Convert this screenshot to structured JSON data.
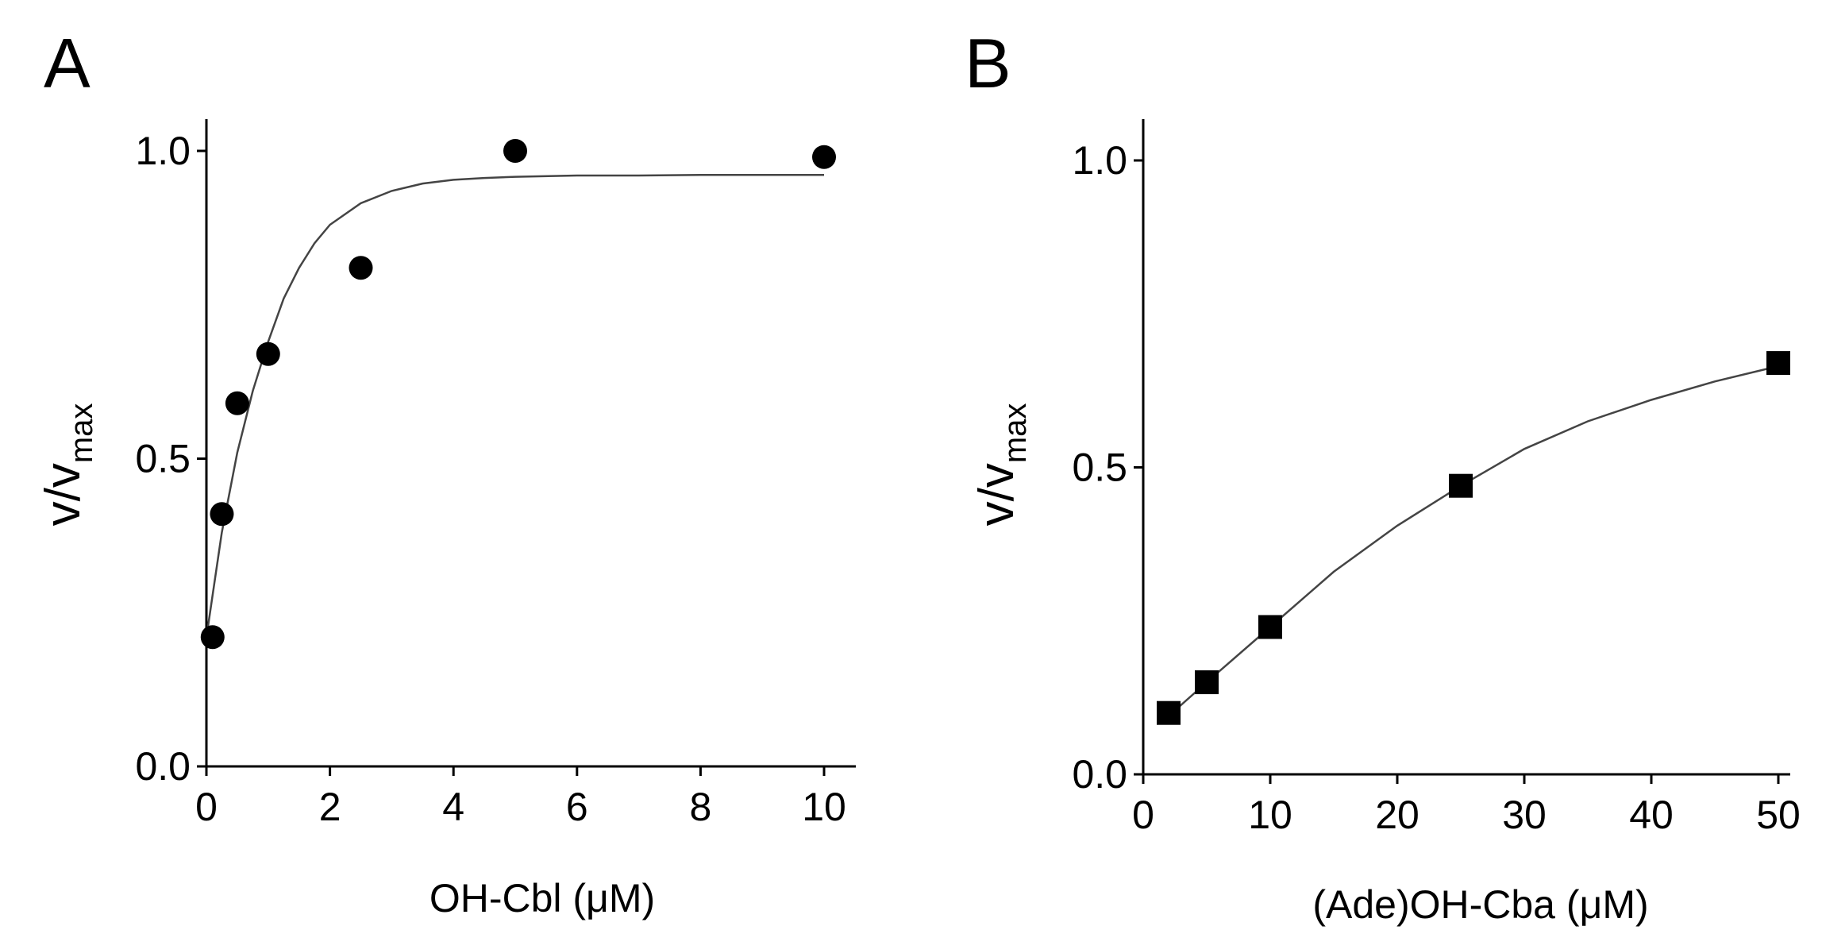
{
  "chart_data": [
    {
      "type": "scatter",
      "panel_label": "A",
      "xlabel": "OH-Cbl (μM)",
      "ylabel": "v/v",
      "ylabel_subscript": "max",
      "xlim": [
        0,
        10.5
      ],
      "ylim": [
        0,
        1.05
      ],
      "xticks": [
        0,
        2,
        4,
        6,
        8,
        10
      ],
      "xtick_labels": [
        "0",
        "2",
        "4",
        "6",
        "8",
        "10"
      ],
      "yticks": [
        0,
        0.5,
        1
      ],
      "ytick_labels": [
        "0.0",
        "0.5",
        "1.0"
      ],
      "marker": "circle",
      "series": [
        {
          "name": "data",
          "x": [
            0.1,
            0.25,
            0.5,
            1.0,
            2.5,
            5.0,
            10.0
          ],
          "y": [
            0.21,
            0.41,
            0.59,
            0.67,
            0.81,
            1.0,
            0.99
          ]
        }
      ],
      "fit": {
        "name": "fit",
        "x": [
          0,
          0.25,
          0.5,
          0.75,
          1.0,
          1.25,
          1.5,
          1.75,
          2.0,
          2.5,
          3.0,
          3.5,
          4.0,
          4.5,
          5.0,
          6.0,
          7.0,
          8.0,
          9.0,
          10.0
        ],
        "y": [
          0.21,
          0.38,
          0.51,
          0.61,
          0.69,
          0.76,
          0.81,
          0.85,
          0.88,
          0.915,
          0.935,
          0.947,
          0.953,
          0.956,
          0.958,
          0.96,
          0.96,
          0.961,
          0.961,
          0.961
        ]
      }
    },
    {
      "type": "scatter",
      "panel_label": "B",
      "xlabel": "(Ade)OH-Cba (μM)",
      "ylabel": "v/v",
      "ylabel_subscript": "max",
      "xlim": [
        0,
        51
      ],
      "ylim": [
        0,
        1.05
      ],
      "xticks": [
        0,
        10,
        20,
        30,
        40,
        50
      ],
      "xtick_labels": [
        "0",
        "10",
        "20",
        "30",
        "40",
        "50"
      ],
      "yticks": [
        0,
        0.5,
        1
      ],
      "ytick_labels": [
        "0.0",
        "0.5",
        "1.0"
      ],
      "marker": "square",
      "series": [
        {
          "name": "data",
          "x": [
            2,
            5,
            10,
            25,
            50
          ],
          "y": [
            0.1,
            0.15,
            0.24,
            0.47,
            0.67
          ]
        }
      ],
      "fit": {
        "name": "fit",
        "x": [
          2,
          5,
          10,
          15,
          20,
          25,
          30,
          35,
          40,
          45,
          50
        ],
        "y": [
          0.095,
          0.15,
          0.24,
          0.33,
          0.405,
          0.47,
          0.53,
          0.575,
          0.61,
          0.64,
          0.665
        ]
      }
    }
  ]
}
